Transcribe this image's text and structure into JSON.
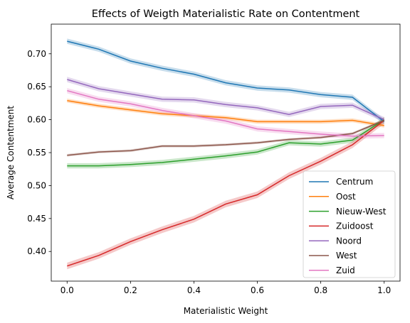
{
  "chart_data": {
    "type": "line",
    "title": "Effects of Weigth Materialistic Rate on Contentment",
    "xlabel": "Materialistic Weight",
    "ylabel": "Average Contentment",
    "xlim": [
      -0.05,
      1.05
    ],
    "ylim": [
      0.355,
      0.745
    ],
    "xticks": [
      0.0,
      0.2,
      0.4,
      0.6,
      0.8,
      1.0
    ],
    "xtick_labels": [
      "0.0",
      "0.2",
      "0.4",
      "0.6",
      "0.8",
      "1.0"
    ],
    "yticks": [
      0.4,
      0.45,
      0.5,
      0.55,
      0.6,
      0.65,
      0.7
    ],
    "ytick_labels": [
      "0.40",
      "0.45",
      "0.50",
      "0.55",
      "0.60",
      "0.65",
      "0.70"
    ],
    "grid": false,
    "legend_position": "lower-right",
    "x": [
      0.0,
      0.1,
      0.2,
      0.3,
      0.4,
      0.5,
      0.6,
      0.7,
      0.8,
      0.9,
      1.0
    ],
    "series": [
      {
        "name": "Centrum",
        "color": "#1f77b4",
        "values": [
          0.719,
          0.707,
          0.689,
          0.678,
          0.669,
          0.656,
          0.648,
          0.645,
          0.638,
          0.634,
          0.597
        ],
        "band": 0.004
      },
      {
        "name": "Oost",
        "color": "#ff7f0e",
        "values": [
          0.629,
          0.621,
          0.615,
          0.609,
          0.606,
          0.603,
          0.597,
          0.597,
          0.597,
          0.599,
          0.591
        ],
        "band": 0.003
      },
      {
        "name": "Nieuw-West",
        "color": "#2ca02c",
        "values": [
          0.53,
          0.53,
          0.532,
          0.535,
          0.54,
          0.545,
          0.551,
          0.565,
          0.563,
          0.569,
          0.6
        ],
        "band": 0.004
      },
      {
        "name": "Zuidoost",
        "color": "#d62728",
        "values": [
          0.378,
          0.394,
          0.415,
          0.433,
          0.449,
          0.472,
          0.486,
          0.515,
          0.537,
          0.562,
          0.599
        ],
        "band": 0.005
      },
      {
        "name": "Noord",
        "color": "#9467bd",
        "values": [
          0.661,
          0.647,
          0.639,
          0.631,
          0.63,
          0.623,
          0.618,
          0.608,
          0.62,
          0.622,
          0.6
        ],
        "band": 0.004
      },
      {
        "name": "West",
        "color": "#8c564b",
        "values": [
          0.546,
          0.551,
          0.553,
          0.56,
          0.56,
          0.562,
          0.565,
          0.57,
          0.573,
          0.579,
          0.599
        ],
        "band": 0.002
      },
      {
        "name": "Zuid",
        "color": "#e377c2",
        "values": [
          0.644,
          0.631,
          0.624,
          0.614,
          0.606,
          0.598,
          0.586,
          0.582,
          0.578,
          0.575,
          0.576
        ],
        "band": 0.004
      }
    ]
  }
}
